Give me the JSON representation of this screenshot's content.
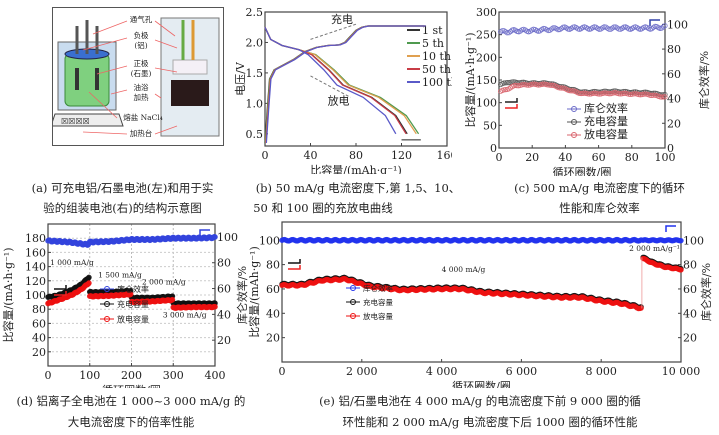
{
  "captions": {
    "a1": "(a) 可充电铝/石墨电池(左)和用于实",
    "a2": "验的组装电池(右)的结构示意图",
    "b1": "(b) 50 mA/g 电流密度下,第 1,5、10、",
    "b2": "50 和 100 圈的充放电曲线",
    "c1": "(c) 500 mA/g 电流密度下的循环",
    "c2": "性能和库仑效率",
    "d1": "(d) 铝离子全电池在 1 000~3 000 mA/g 的",
    "d2": "大电流密度下的倍率性能",
    "e1": "(e) 铝/石墨电池在 4 000 mA/g 的电流密度下前 9 000 圈的循",
    "e2": "环性能和 2 000 mA/g 电流密度下后 1000 圈的循环性能"
  },
  "diagram": {
    "labels": [
      "通气孔",
      "负极",
      "(铝)",
      "正极",
      "(石墨)",
      "油浴",
      "加热",
      "熔盐 NaCl₄",
      "加热台"
    ]
  },
  "chart_data": [
    {
      "id": "b",
      "type": "line",
      "title": "",
      "xlabel": "比容量/(mAh·g⁻¹)",
      "ylabel": "电压/V",
      "xlim": [
        0,
        160
      ],
      "ylim": [
        0.3,
        2.5
      ],
      "xticks": [
        0,
        40,
        80,
        120,
        160
      ],
      "yticks": [
        0.5,
        1.0,
        1.5,
        2.0,
        2.5
      ],
      "ytick_labels": [
        "0.5",
        "1.0",
        "1.5",
        "2.0",
        "2.5"
      ],
      "annotations": [
        "充电",
        "放电"
      ],
      "charge_curve": {
        "x": [
          0,
          2,
          4,
          8,
          15,
          25,
          35,
          45,
          55,
          65,
          70,
          75,
          80,
          85,
          90,
          100,
          120,
          140
        ],
        "y": [
          0.35,
          0.9,
          1.4,
          1.55,
          1.62,
          1.72,
          1.85,
          1.92,
          1.95,
          1.96,
          2.0,
          2.1,
          2.2,
          2.25,
          2.27,
          2.27,
          2.27,
          2.27
        ]
      },
      "series": [
        {
          "name": "1 st",
          "color": "#333333",
          "discharge_end": 125
        },
        {
          "name": "5 th",
          "color": "#4f9a4f",
          "discharge_end": 135
        },
        {
          "name": "10 th",
          "color": "#e0a050",
          "discharge_end": 133
        },
        {
          "name": "50 th",
          "color": "#c83c46",
          "discharge_end": 124
        },
        {
          "name": "100 th",
          "color": "#5a5ac8",
          "discharge_end": 115
        }
      ]
    },
    {
      "id": "c",
      "type": "scatter",
      "xlabel": "循环圈数/圈",
      "ylabel": "比容量/(mA·h·g⁻¹)",
      "ylabel_right": "库仑效率/%",
      "xlim": [
        0,
        100
      ],
      "ylim": [
        0,
        300
      ],
      "ylim_right": [
        0,
        110
      ],
      "xticks": [
        0,
        20,
        40,
        60,
        80,
        100
      ],
      "yticks": [
        0,
        50,
        100,
        150,
        200,
        250,
        300
      ],
      "yticks_right": [
        0,
        20,
        40,
        60,
        80,
        100
      ],
      "series": [
        {
          "name": "库仑效率",
          "color": "#6a6ac8",
          "axis": "right",
          "x": [
            1,
            5,
            10,
            20,
            30,
            40,
            50,
            60,
            70,
            80,
            90,
            100
          ],
          "y": [
            94,
            94,
            95,
            95,
            96,
            97,
            97,
            97,
            97,
            97,
            97,
            98
          ]
        },
        {
          "name": "充电容量",
          "color": "#555555",
          "axis": "left",
          "x": [
            1,
            5,
            10,
            20,
            30,
            40,
            50,
            60,
            70,
            80,
            90,
            100
          ],
          "y": [
            140,
            145,
            145,
            143,
            143,
            133,
            123,
            124,
            125,
            123,
            122,
            117
          ]
        },
        {
          "name": "放电容量",
          "color": "#d9656e",
          "axis": "left",
          "x": [
            1,
            5,
            10,
            20,
            30,
            40,
            50,
            60,
            70,
            80,
            90,
            100
          ],
          "y": [
            125,
            130,
            138,
            140,
            140,
            130,
            120,
            120,
            121,
            119,
            118,
            112
          ]
        }
      ]
    },
    {
      "id": "d",
      "type": "scatter",
      "xlabel": "循环圈数/圈",
      "ylabel": "比容量/(mA·h·g⁻¹)",
      "ylabel_right": "库仑效率/%",
      "xlim": [
        0,
        400
      ],
      "ylim": [
        0,
        200
      ],
      "ylim_right": [
        0,
        110
      ],
      "xticks": [
        0,
        100,
        200,
        300,
        400
      ],
      "yticks": [
        20,
        40,
        60,
        80,
        100,
        120,
        140,
        160,
        180
      ],
      "yticks_right": [
        20,
        40,
        60,
        80,
        100
      ],
      "annotations": [
        "1 000 mA/g",
        "1 500 mA/g",
        "2 000 mA/g",
        "3 000 mA/g"
      ],
      "series": [
        {
          "name": "库仑效率",
          "color": "#3344dd",
          "axis": "right",
          "x": [
            0,
            50,
            95,
            100,
            150,
            200,
            250,
            300,
            350,
            400
          ],
          "y": [
            97,
            96,
            94,
            96,
            96.5,
            98,
            98,
            99,
            99,
            99.5
          ]
        },
        {
          "name": "充电容量",
          "color": "#111111",
          "axis": "left",
          "x": [
            0,
            20,
            40,
            60,
            80,
            98,
            100,
            150,
            199,
            200,
            250,
            299,
            300,
            350,
            400
          ],
          "y": [
            97,
            99,
            103,
            108,
            115,
            125,
            104,
            104,
            106,
            96,
            96,
            98,
            88,
            88,
            88
          ]
        },
        {
          "name": "放电容量",
          "color": "#ee1111",
          "axis": "left",
          "x": [
            0,
            20,
            40,
            60,
            80,
            98,
            100,
            150,
            199,
            200,
            250,
            299,
            300,
            350,
            400
          ],
          "y": [
            88,
            92,
            96,
            101,
            108,
            117,
            98,
            99,
            101,
            90,
            91,
            93,
            82,
            83,
            83
          ]
        }
      ]
    },
    {
      "id": "e",
      "type": "scatter",
      "xlabel": "循环圈数/圈",
      "ylabel": "比容量/(mAh·g⁻¹)",
      "ylabel_right": "库仑效率/%",
      "xlim": [
        0,
        10000
      ],
      "ylim": [
        0,
        115
      ],
      "ylim_right": [
        0,
        115
      ],
      "xticks": [
        0,
        2000,
        4000,
        6000,
        8000,
        10000
      ],
      "xtick_labels": [
        "0",
        "2 000",
        "4 000",
        "6 000",
        "8 000",
        "10 000"
      ],
      "yticks": [
        20,
        40,
        60,
        80,
        100
      ],
      "yticks_right": [
        20,
        40,
        60,
        80,
        100
      ],
      "annotations": [
        "4 000 mA/g",
        "2 000 mA/g⁻¹"
      ],
      "series": [
        {
          "name": "库仑效率",
          "color": "#2233ee",
          "axis": "right",
          "x": [
            0,
            1000,
            2000,
            3000,
            4000,
            5000,
            6000,
            7000,
            8000,
            9000,
            10000
          ],
          "y": [
            100,
            100,
            100,
            100,
            100,
            100,
            100,
            100,
            100,
            100,
            100
          ]
        },
        {
          "name": "充电容量",
          "color": "#111111",
          "axis": "left",
          "x": [
            0,
            500,
            1000,
            1600,
            2200,
            3000,
            4000,
            4500,
            5000,
            6000,
            7000,
            7500,
            8000,
            8500,
            9000,
            9050,
            9300,
            9600,
            10000
          ],
          "y": [
            64,
            64,
            68,
            69,
            63,
            60,
            61,
            61,
            58,
            56,
            54,
            54,
            51,
            49,
            45,
            86,
            82,
            79,
            77
          ]
        },
        {
          "name": "放电容量",
          "color": "#ee1111",
          "axis": "left",
          "x": [
            0,
            500,
            1000,
            1600,
            2200,
            3000,
            4000,
            4500,
            5000,
            6000,
            7000,
            7500,
            8000,
            8500,
            9000,
            9050,
            9300,
            9600,
            10000
          ],
          "y": [
            63,
            63,
            67,
            68,
            62,
            59,
            60,
            60,
            57,
            55,
            53,
            53,
            50,
            48,
            44,
            85,
            81,
            78,
            76
          ]
        }
      ]
    }
  ]
}
